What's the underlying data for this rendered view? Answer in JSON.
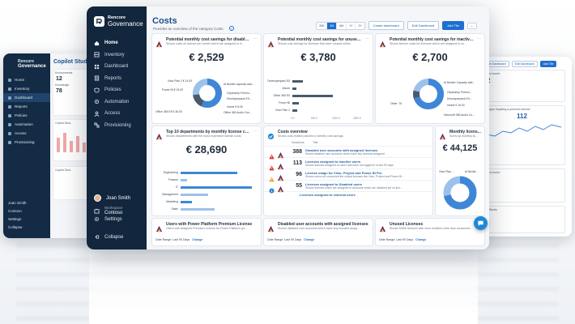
{
  "brand": {
    "top": "Rencore",
    "bottom": "Governance"
  },
  "nav": [
    {
      "label": "Home",
      "icon": "home-icon"
    },
    {
      "label": "Inventory",
      "icon": "inventory-icon"
    },
    {
      "label": "Dashboard",
      "icon": "dashboard-icon"
    },
    {
      "label": "Reports",
      "icon": "reports-icon"
    },
    {
      "label": "Policies",
      "icon": "policies-icon"
    },
    {
      "label": "Automation",
      "icon": "automation-icon"
    },
    {
      "label": "Access",
      "icon": "access-icon"
    },
    {
      "label": "Provisioning",
      "icon": "provisioning-icon"
    }
  ],
  "user": {
    "name": "Joan Smith",
    "workspace_label": "Workspace",
    "workspace": "Contoso"
  },
  "settings_label": "Settings",
  "collapse_label": "Collapse",
  "page": {
    "title": "Costs",
    "subtitle": "Provides an overview of the category Costs"
  },
  "toolbar": {
    "ranges": [
      "30D",
      "3M",
      "6M",
      "1Y",
      "2Y"
    ],
    "active_range": "3M",
    "create_label": "Create dashboard",
    "edit_label": "Edit Dashboard",
    "add_label": "Add Tile",
    "more_label": "..."
  },
  "cards": {
    "c1": {
      "title": "Potential monthly cost savings for disabled u...",
      "sub": "Shows costs on license per month which are assigned to d...",
      "value": "€ 2,529"
    },
    "c2": {
      "title": "Potential monthly cost savings for unused units",
      "sub": "Shows cost savings for licenses that have unused unites",
      "value": "€ 3,780"
    },
    "c3": {
      "title": "Potential monthly cost savings for inactive u...",
      "sub": "Shows license costs for licenses which are assigned to us...",
      "value": "€ 2,700"
    },
    "c4": {
      "title": "Top 10 departments by monthly license costs",
      "sub": "Shows departments with the most expensive license costs",
      "value": "€ 28,690"
    },
    "c5": {
      "title": "Costs overview",
      "sub": "Shows cost-related policies to identify cost savings",
      "col1": "Violations",
      "col2": "Title"
    },
    "c6": {
      "title": "Monthly licens...",
      "sub": "Sums up monthly lic...",
      "value": "€ 44,125"
    },
    "c7": {
      "title": "Users with Power Platform Premium License",
      "sub": "Users with assigned Premium License for Power Platform (pr...",
      "date_label": "Date Range: Last 90 Days",
      "change": "Change"
    },
    "c8": {
      "title": "Disabled user accounts with assigned licenses",
      "sub": "Shows disabled user accounts which have any licenses assig...",
      "date_label": "Date Range: Last 90 Days",
      "change": "Change"
    },
    "c9": {
      "title": "Unused Licenses",
      "sub": "Shows M365 licenses with more enabled units than consumed...",
      "date_label": "Date Range: Last 90 Days",
      "change": "Change"
    }
  },
  "donut1_labels": [
    "Visio Plan 2 € 14.00",
    "Power BI € 19.00",
    "Office 365 E5 € 36.00",
    "Microsoft Dynamics...",
    "AI Builder capacity add-...",
    "Clipchamp Premiu...",
    "Developerpack E5...",
    "Intune € 8.00",
    "Office 365 Audio Con..."
  ],
  "bars2_labels": [
    "Developerpack E5",
    "Intune",
    "Office 365 E5",
    "Power BI",
    "Visio Plan 2"
  ],
  "bars2_axis": [
    "0.0",
    "500.0",
    "1000.0",
    "1500.0"
  ],
  "donut3_labels": [
    "AI Builder Capacity add...",
    "Clipchamp Premiu...",
    "Developerpack E5...",
    "Intune € 16.00",
    "Other: 76",
    "Microsoft 365 Audio Co..."
  ],
  "bars4_labels": [
    "Engineering",
    "Finance",
    "IT",
    "Management",
    "Marketing",
    "Sales"
  ],
  "policies": [
    {
      "count": "388",
      "title": "Disabled user accounts with assigned licenses",
      "sub": "Shows disabled user accounts which have any licenses assigned"
    },
    {
      "count": "113",
      "title": "Licenses assigned to inactive users",
      "sub": "Shows licenses assigned to users that have not logged in in last 90 days"
    },
    {
      "count": "96",
      "title": "License usage for Visio, Project and Power BI Pro",
      "sub": "Shows users not consumed the critical licenses like Visio, Project and Power Bi..."
    },
    {
      "count": "55",
      "title": "Licenses assigned to Disabled users",
      "sub": "Shows licenses which are assigned to accounts which are disabled yet no lice..."
    },
    {
      "count": "",
      "title": "Licenses assigned to external users",
      "sub": ""
    }
  ],
  "donut6_labels": [
    "Visio Plan...",
    "AI Builde..."
  ],
  "left_window": {
    "brand_top": "Rencore",
    "brand_bottom": "Governance",
    "title": "Copilot Stud...",
    "nav": [
      "Home",
      "Inventory",
      "Dashboard",
      "Reports",
      "Policies",
      "Automation",
      "Access",
      "Provisioning"
    ],
    "user": "Joan Smith",
    "workspace": "Contoso",
    "settings": "Settings",
    "collapse": "Collapse",
    "stat1_label": "Environments",
    "stat1_value": "12",
    "stat2_label": "Knowledge",
    "stat2_value": "78",
    "item1": "Copilot Stud...",
    "item2": "Copilot Stud..."
  },
  "right_window": {
    "btn1": "Create Dashboard",
    "btn2": "Edit Dashboard",
    "btn3": "Add Tile",
    "num1": "102",
    "num2": "112",
    "num3": "7",
    "t1": "Violations found",
    "t2": "Power Apps requiring a premium license",
    "t3": "Violations found",
    "t4": "Copilot Studio"
  },
  "colors": {
    "sidebar": "#12263d",
    "accent": "#1d6fd1",
    "title": "#1c4f8c",
    "donut_main": "#3f86d6",
    "donut_light": "#9cc1ea",
    "donut_dark": "#4a5a6d"
  }
}
